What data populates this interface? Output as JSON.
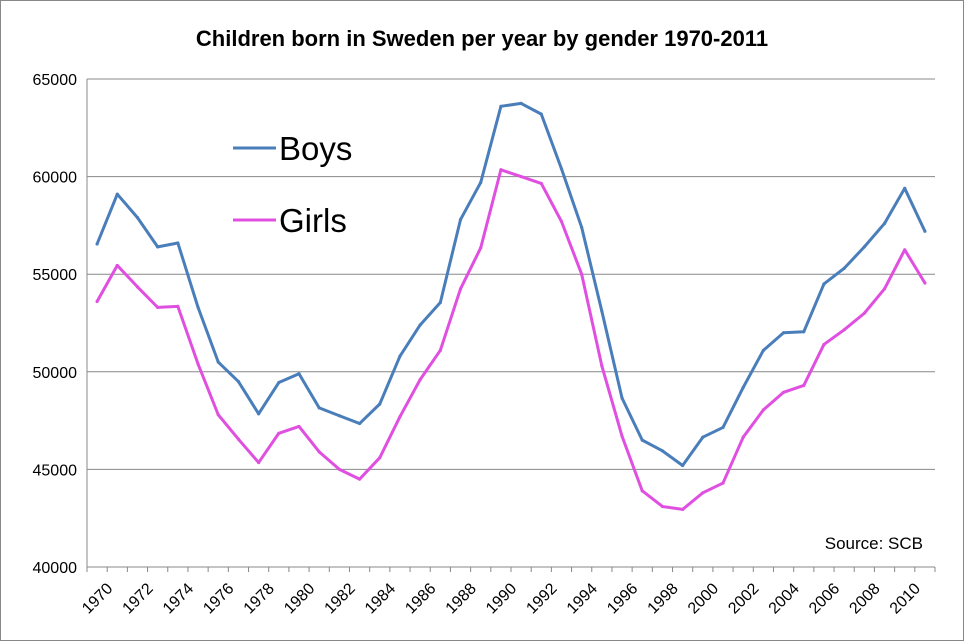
{
  "chart_data": {
    "type": "line",
    "title": "Children born in Sweden per year by gender 1970-2011",
    "xlabel": "",
    "ylabel": "",
    "x": [
      1970,
      1971,
      1972,
      1973,
      1974,
      1975,
      1976,
      1977,
      1978,
      1979,
      1980,
      1981,
      1982,
      1983,
      1984,
      1985,
      1986,
      1987,
      1988,
      1989,
      1990,
      1991,
      1992,
      1993,
      1994,
      1995,
      1996,
      1997,
      1998,
      1999,
      2000,
      2001,
      2002,
      2003,
      2004,
      2005,
      2006,
      2007,
      2008,
      2009,
      2010,
      2011
    ],
    "x_tick_labels": [
      "1970",
      "1972",
      "1974",
      "1976",
      "1978",
      "1980",
      "1982",
      "1984",
      "1986",
      "1988",
      "1990",
      "1992",
      "1994",
      "1996",
      "1998",
      "2000",
      "2002",
      "2004",
      "2006",
      "2008",
      "2010"
    ],
    "ylim": [
      40000,
      65000
    ],
    "y_tick_labels": [
      "40000",
      "45000",
      "50000",
      "55000",
      "60000",
      "65000"
    ],
    "grid": "horizontal",
    "legend_placement": "upper-left",
    "annotation": "Source: SCB",
    "series": [
      {
        "name": "Boys",
        "color": "#4a7ebb",
        "values": [
          56550,
          59100,
          57900,
          56400,
          56600,
          53300,
          50500,
          49500,
          47850,
          49450,
          49900,
          48150,
          47750,
          47350,
          48350,
          50800,
          52400,
          53550,
          57800,
          59700,
          63600,
          63750,
          63200,
          60400,
          57400,
          53100,
          48650,
          46500,
          45950,
          45200,
          46650,
          47150,
          49200,
          51100,
          52000,
          52050,
          54500,
          55300,
          56400,
          57600,
          59400,
          57200
        ]
      },
      {
        "name": "Girls",
        "color": "#e050e0",
        "values": [
          53600,
          55450,
          54350,
          53300,
          53350,
          50400,
          47800,
          46550,
          45350,
          46850,
          47200,
          45900,
          45000,
          44500,
          45600,
          47700,
          49600,
          51100,
          54250,
          56350,
          60350,
          60000,
          59650,
          57700,
          55000,
          50300,
          46700,
          43900,
          43100,
          42950,
          43800,
          44300,
          46650,
          48050,
          48950,
          49300,
          51400,
          52150,
          53000,
          54250,
          56250,
          54550
        ]
      }
    ]
  }
}
